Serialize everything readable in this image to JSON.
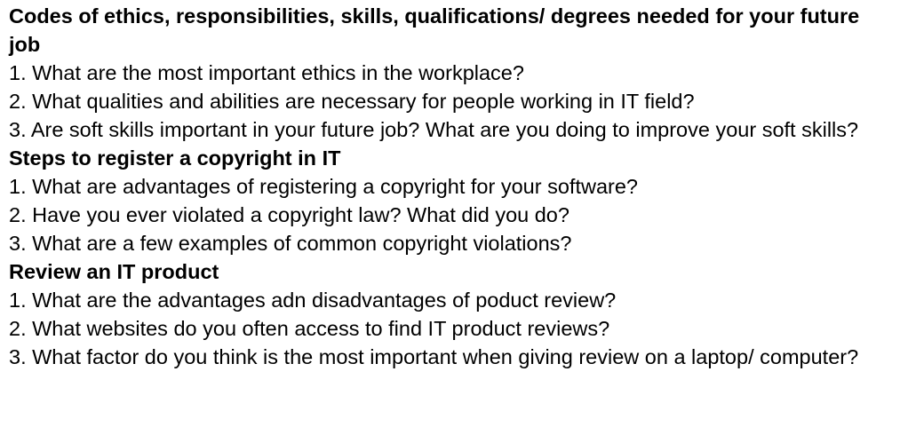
{
  "sections": [
    {
      "heading": "Codes of ethics, responsibilities, skills, qualifications/ degrees needed for your future job",
      "questions": [
        "1. What are the most important ethics in the workplace?",
        "2. What qualities and abilities are necessary for people working in IT field?",
        "3. Are soft skills important in your future job? What are you doing to improve your soft skills?"
      ]
    },
    {
      "heading": "Steps to register a copyright in IT",
      "questions": [
        "1. What are advantages of registering a copyright for your software?",
        "2. Have you ever violated a copyright law? What did you do?",
        "3. What are a few examples of common copyright violations?"
      ]
    },
    {
      "heading": "Review an IT product",
      "questions": [
        "1. What are the advantages adn disadvantages of poduct review?",
        "2. What websites do you often access to find IT product reviews?",
        "3. What factor do you think is the most important when giving review on a laptop/ computer?"
      ]
    }
  ]
}
